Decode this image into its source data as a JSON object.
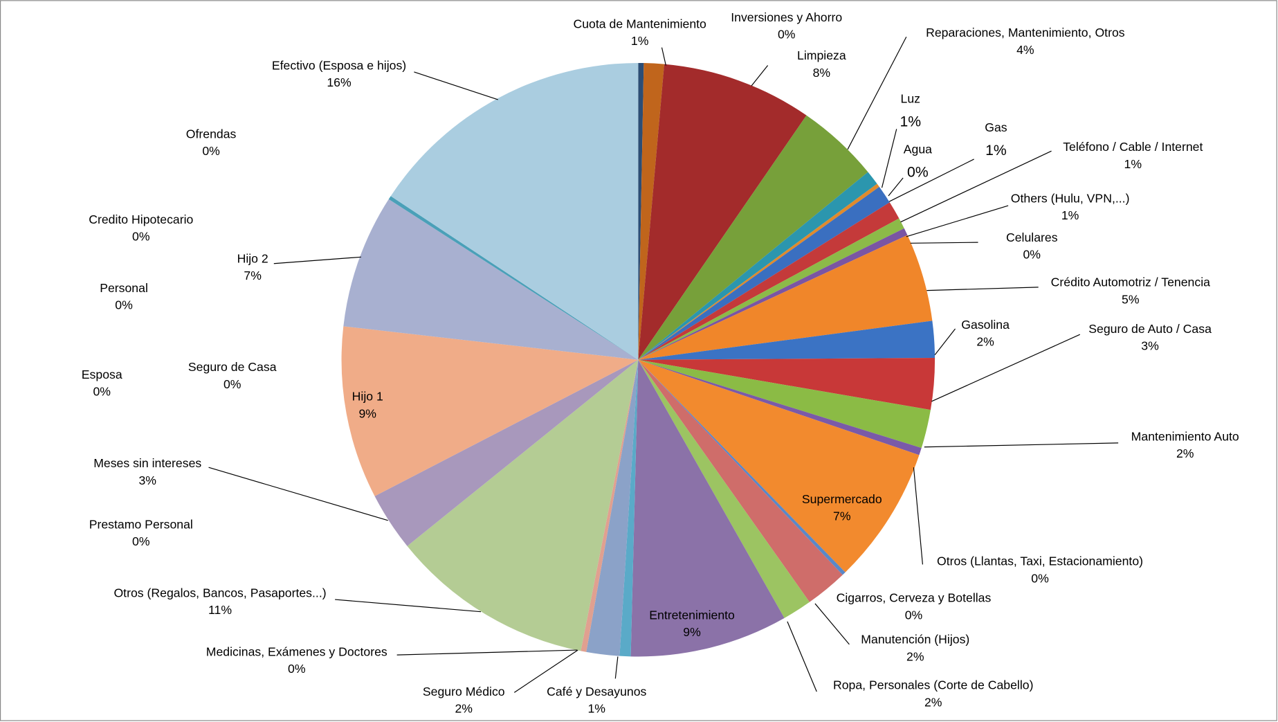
{
  "chart_data": {
    "type": "pie",
    "categories": [
      "Inversiones y Ahorro",
      "Cuota de Mantenimiento",
      "Limpieza",
      "Reparaciones, Mantenimiento, Otros",
      "Luz",
      "Agua",
      "Gas",
      "Teléfono / Cable / Internet",
      "Others (Hulu, VPN,...)",
      "Celulares",
      "Crédito Automotriz / Tenencia",
      "Gasolina",
      "Seguro de Auto / Casa",
      "Mantenimiento Auto",
      "Otros (Llantas, Taxi, Estacionamiento)",
      "Supermercado",
      "Cigarros, Cerveza  y Botellas",
      "Manutención (Hijos)",
      "Ropa, Personales (Corte de Cabello)",
      "Entretenimiento",
      "Café y Desayunos",
      "Seguro Médico",
      "Medicinas, Exámenes y Doctores",
      "Otros (Regalos, Bancos, Pasaportes...)",
      "Prestamo Personal",
      "Meses sin intereses",
      "Esposa",
      "Seguro de Casa",
      "Hijo 1",
      "Personal",
      "Credito Hipotecario",
      "Hijo 2",
      "Ofrendas",
      "Efectivo (Esposa e hijos)"
    ],
    "values": [
      0.3,
      1.1,
      8.2,
      4.5,
      0.8,
      0.2,
      1,
      1,
      0.6,
      0.4,
      4.8,
      2,
      2.8,
      2.1,
      0.4,
      7.5,
      0.2,
      2.3,
      1.6,
      8.6,
      0.6,
      1.8,
      0.3,
      11.1,
      0,
      3.2,
      0,
      0,
      9.4,
      0,
      0,
      7.3,
      0.2,
      15.7
    ],
    "value_labels": [
      "0%",
      "1%",
      "8%",
      "4%",
      "1%",
      "0%",
      "1%",
      "1%",
      "1%",
      "0%",
      "5%",
      "2%",
      "3%",
      "2%",
      "0%",
      "7%",
      "0%",
      "2%",
      "2%",
      "9%",
      "1%",
      "2%",
      "0%",
      "11%",
      "0%",
      "3%",
      "0%",
      "0%",
      "9%",
      "0%",
      "0%",
      "7%",
      "0%",
      "16%"
    ],
    "colors": [
      "#2c4d75",
      "#c0651c",
      "#a32b2b",
      "#77a03a",
      "#2b96ae",
      "#e08a2c",
      "#3a6fc0",
      "#c43a3a",
      "#8cba48",
      "#7a55a3",
      "#f0862a",
      "#3b73c4",
      "#c83838",
      "#8bbb45",
      "#7a5aa8",
      "#f28a2e",
      "#5a88c8",
      "#cf6d6a",
      "#9cc462",
      "#8b72a8",
      "#5aaac8",
      "#8ba2c8",
      "#e0a090",
      "#b4cc94",
      "#999999",
      "#a898bc",
      "#999999",
      "#999999",
      "#f0ac88",
      "#999999",
      "#999999",
      "#a8b0d0",
      "#4aa0b8",
      "#aacde0"
    ]
  }
}
